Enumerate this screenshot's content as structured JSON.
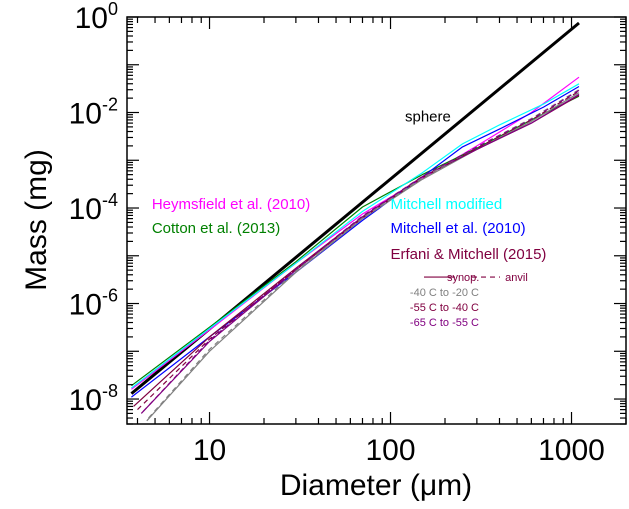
{
  "chart_data": {
    "type": "line",
    "title": "",
    "xlabel": "Diameter (μm)",
    "ylabel": "Mass (mg)",
    "xscale": "log",
    "yscale": "log",
    "xlim": [
      3.5,
      2000
    ],
    "ylim": [
      3e-09,
      1
    ],
    "grid": false,
    "x_ticks": [
      {
        "value": 10,
        "label": "10"
      },
      {
        "value": 100,
        "label": "100"
      },
      {
        "value": 1000,
        "label": "1000"
      }
    ],
    "y_ticks": [
      {
        "value": 1e-08,
        "base": "10",
        "exp": "-8"
      },
      {
        "value": 1e-06,
        "base": "10",
        "exp": "-6"
      },
      {
        "value": 0.0001,
        "base": "10",
        "exp": "-4"
      },
      {
        "value": 0.01,
        "base": "10",
        "exp": "-2"
      },
      {
        "value": 1,
        "base": "10",
        "exp": "0"
      }
    ],
    "annotations": [
      {
        "text": "sphere",
        "color": "#000000",
        "size": 15,
        "anchor": [
          5,
          0.0065
        ]
      },
      {
        "text": "Heymsfield et al. (2010)",
        "color": "#ff00ff",
        "size": 15,
        "anchor": [
          4.8,
          9.5e-05
        ]
      },
      {
        "text": "Cotton et al. (2013)",
        "color": "#008000",
        "size": 15,
        "anchor": [
          4.8,
          3e-05
        ]
      },
      {
        "text": "Mitchell modified",
        "color": "#00ffff",
        "size": 15,
        "anchor": [
          100,
          9.5e-05
        ]
      },
      {
        "text": "Mitchell et al. (2010)",
        "color": "#0000ff",
        "size": 15,
        "anchor": [
          100,
          3e-05
        ]
      },
      {
        "text": "Erfani & Mitchell (2015)",
        "color": "#800040",
        "size": 15,
        "anchor": [
          100,
          8.6e-06
        ]
      },
      {
        "text": "synop.",
        "color": "#800040",
        "size": 11,
        "anchor": [
          205,
          2.95e-06
        ]
      },
      {
        "text": "anvil",
        "color": "#800040",
        "size": 11,
        "anchor": [
          430,
          2.95e-06
        ]
      },
      {
        "text": "-40 C to -20 C",
        "color": "#808080",
        "size": 11,
        "anchor": [
          128,
          1.45e-06
        ]
      },
      {
        "text": "-55 C to -40 C",
        "color": "#800040",
        "size": 11,
        "anchor": [
          128,
          6.9e-07
        ]
      },
      {
        "text": "-65 C to -55 C",
        "color": "#800080",
        "size": 11,
        "anchor": [
          128,
          3.4e-07
        ]
      }
    ],
    "series": [
      {
        "color": "#000000",
        "width": 3,
        "dash": "",
        "x": [
          3.7,
          1100
        ],
        "y": [
          1.3e-08,
          0.75
        ]
      },
      {
        "color": "#ff00ff",
        "width": 1.2,
        "dash": "",
        "x": [
          3.7,
          10,
          30,
          70,
          150,
          300,
          600,
          1100
        ],
        "y": [
          1.6e-08,
          2.8e-07,
          7e-06,
          7.5e-05,
          0.00042,
          0.002,
          0.01,
          0.055
        ]
      },
      {
        "color": "#008000",
        "width": 1.2,
        "dash": "",
        "x": [
          3.7,
          10,
          30,
          70,
          150,
          300,
          600,
          1100
        ],
        "y": [
          1.9e-08,
          3.2e-07,
          7.5e-06,
          0.000105,
          0.0005,
          0.0018,
          0.007,
          0.022
        ]
      },
      {
        "color": "#00ffff",
        "width": 1.2,
        "dash": "",
        "x": [
          3.7,
          10,
          30,
          70,
          150,
          250,
          400,
          700,
          1100
        ],
        "y": [
          1.7e-08,
          3e-07,
          7e-06,
          8.5e-05,
          0.00055,
          0.0022,
          0.0055,
          0.015,
          0.04
        ]
      },
      {
        "color": "#0000ff",
        "width": 1.2,
        "dash": "",
        "x": [
          3.7,
          10,
          30,
          70,
          150,
          250,
          400,
          700,
          1100
        ],
        "y": [
          1.1e-08,
          2e-07,
          4.5e-06,
          5.5e-05,
          0.00045,
          0.0019,
          0.0045,
          0.013,
          0.035
        ]
      },
      {
        "color": "#808080",
        "width": 1.2,
        "dash": "",
        "x": [
          4.5,
          10,
          30,
          70,
          150,
          300,
          600,
          1100
        ],
        "y": [
          3.5e-09,
          1e-07,
          4.5e-06,
          6e-05,
          0.0004,
          0.0017,
          0.0065,
          0.026
        ]
      },
      {
        "color": "#800040",
        "width": 1.2,
        "dash": "",
        "x": [
          3.8,
          10,
          30,
          70,
          150,
          300,
          600,
          1100
        ],
        "y": [
          7e-09,
          2e-07,
          5.5e-06,
          6.5e-05,
          0.00045,
          0.0017,
          0.006,
          0.023
        ]
      },
      {
        "color": "#800080",
        "width": 1.2,
        "dash": "",
        "x": [
          4.2,
          10,
          30,
          70,
          150,
          300,
          600,
          1100
        ],
        "y": [
          5e-09,
          1.6e-07,
          5e-06,
          6.5e-05,
          0.00045,
          0.0017,
          0.006,
          0.024
        ]
      },
      {
        "color": "#800040",
        "width": 1.2,
        "dash": "5,4",
        "x": [
          4.0,
          10,
          30,
          70,
          150,
          300,
          600,
          1100
        ],
        "y": [
          6e-09,
          1.8e-07,
          5.2e-06,
          6.2e-05,
          0.00043,
          0.0018,
          0.007,
          0.028
        ]
      },
      {
        "color": "#808080",
        "width": 1.2,
        "dash": "5,4",
        "x": [
          4.6,
          10,
          30,
          70,
          150,
          300,
          600,
          1100
        ],
        "y": [
          4e-09,
          1.1e-07,
          4.8e-06,
          6.2e-05,
          0.00043,
          0.0019,
          0.0075,
          0.03
        ]
      },
      {
        "color": "#800080",
        "width": 1.2,
        "dash": "5,4",
        "x": [
          4.3,
          10,
          30,
          70,
          150,
          300,
          600,
          1100
        ],
        "y": [
          5.5e-09,
          1.7e-07,
          5.3e-06,
          6.8e-05,
          0.00046,
          0.0019,
          0.0072,
          0.029
        ]
      }
    ]
  }
}
